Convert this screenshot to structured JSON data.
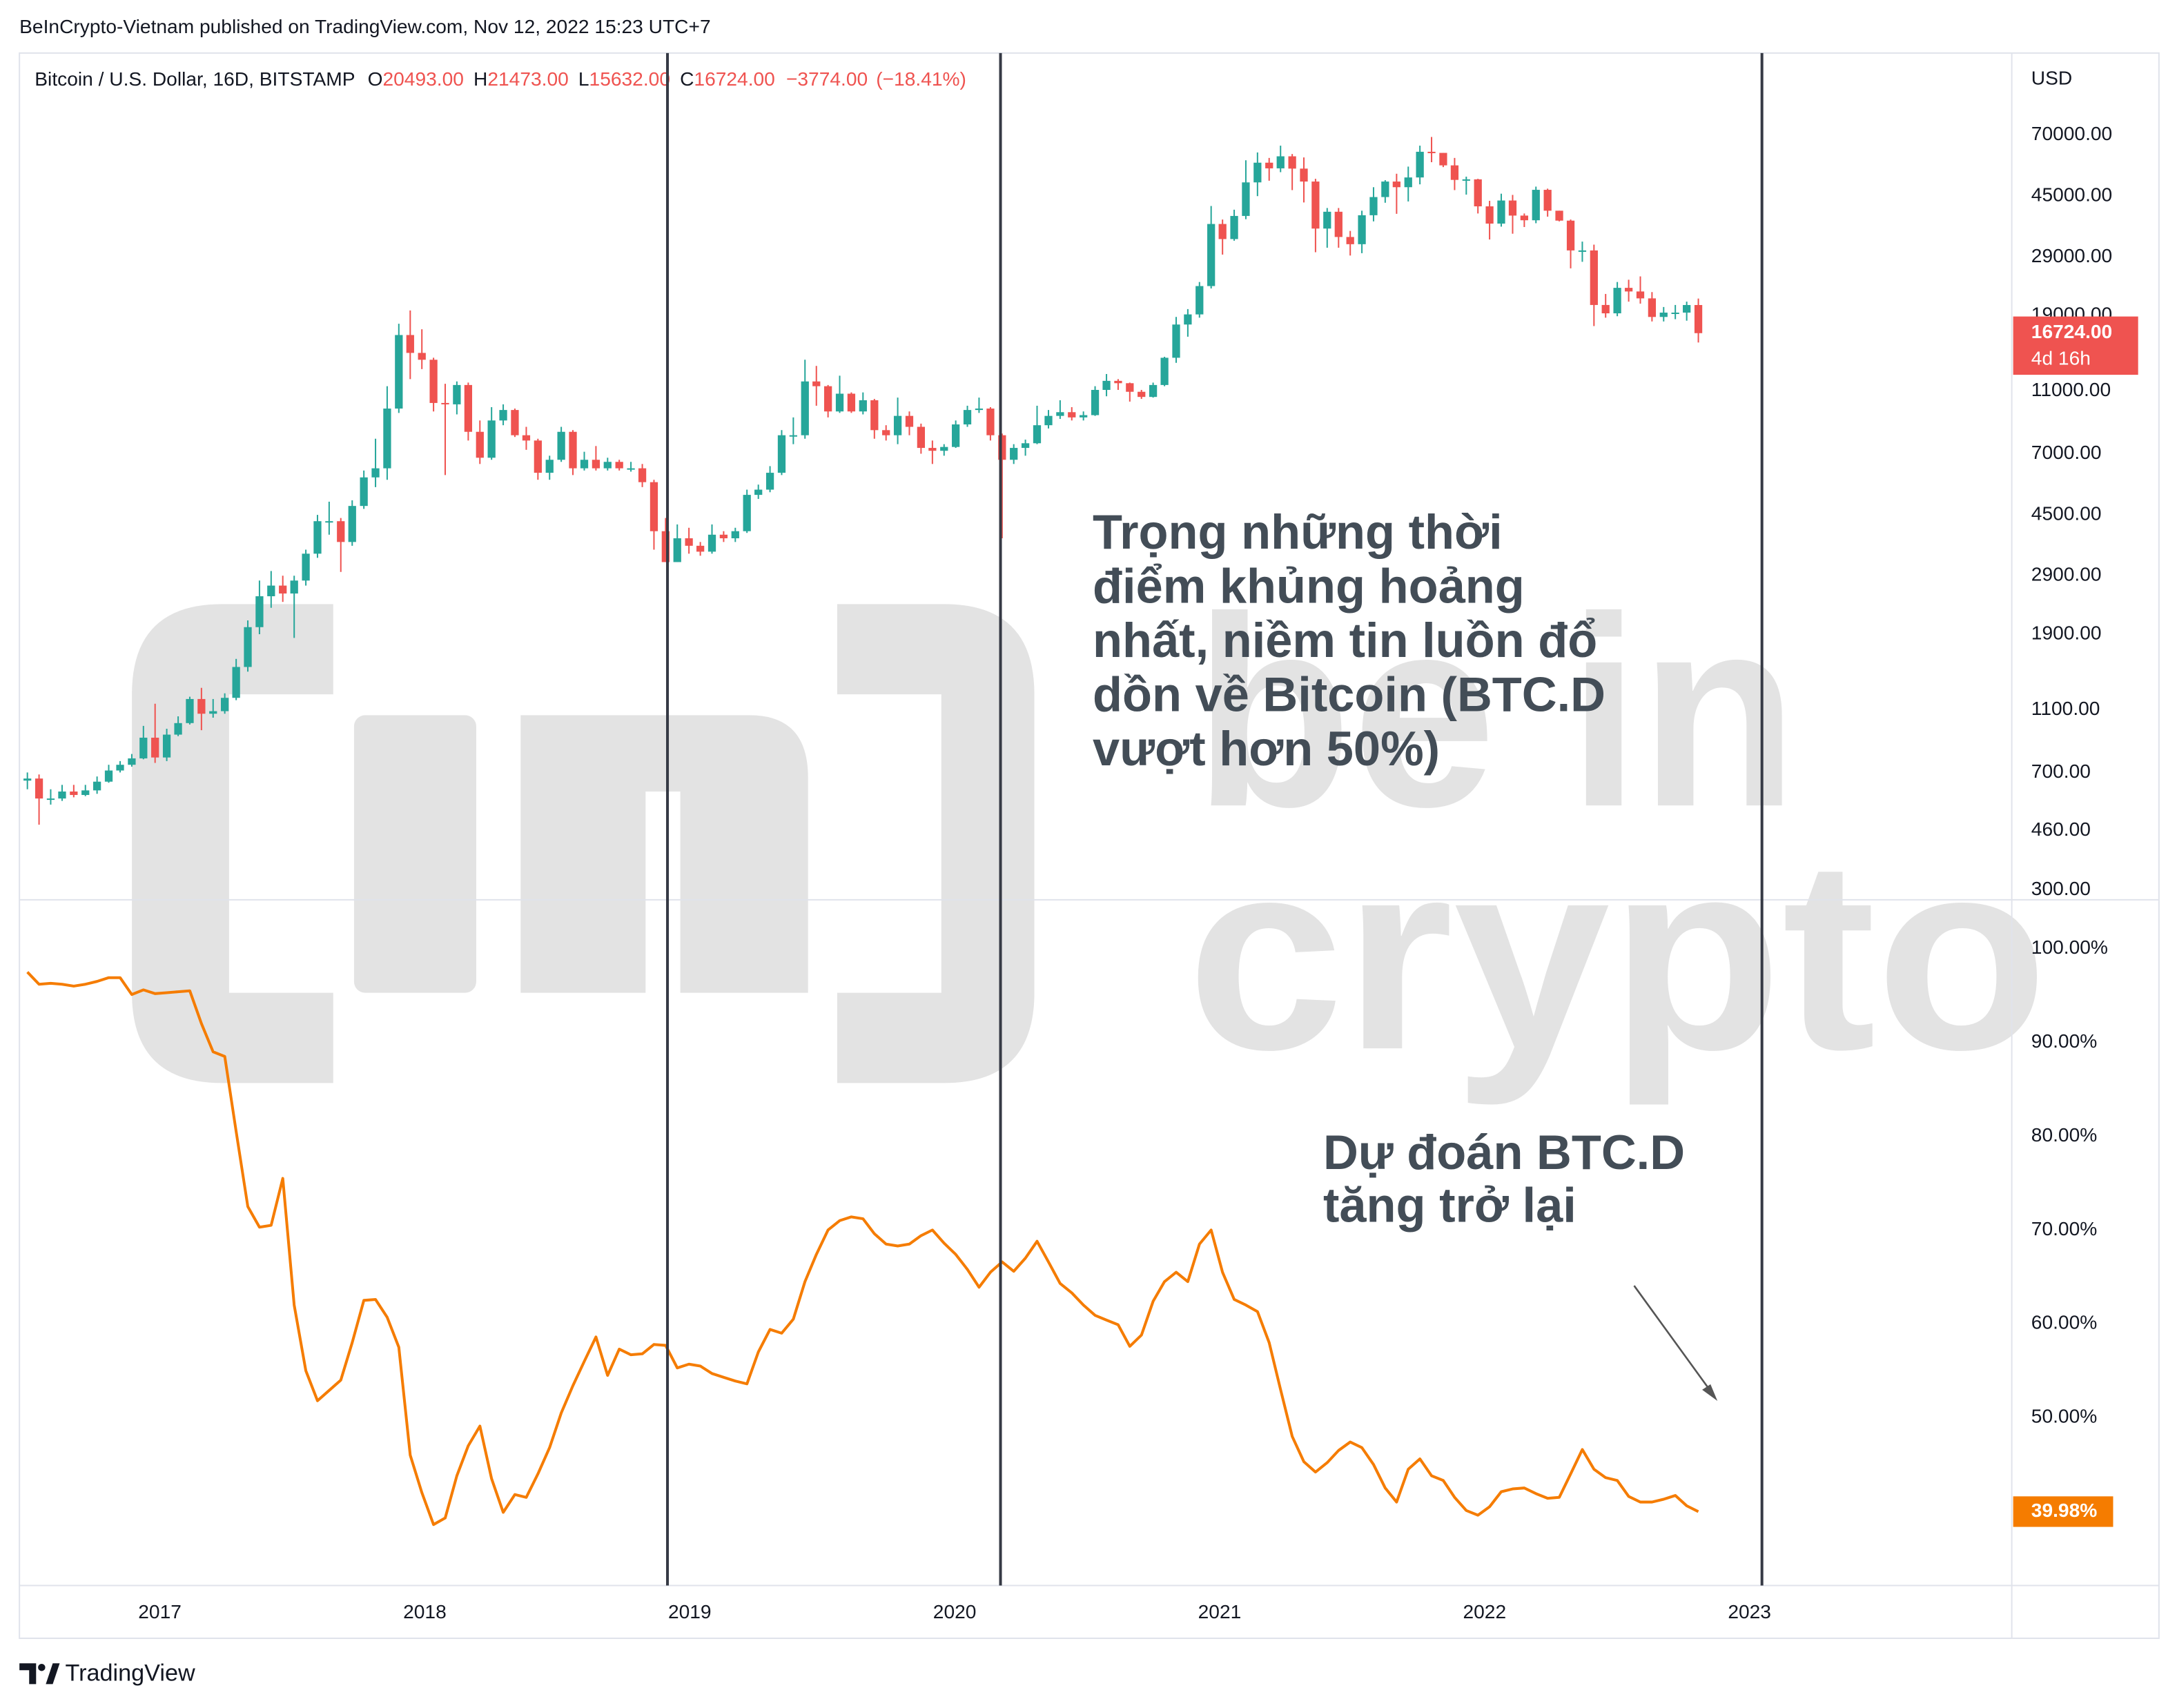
{
  "attribution": "BeInCrypto-Vietnam published on TradingView.com, Nov 12, 2022 15:23 UTC+7",
  "footer": "TradingView",
  "watermark": [
    "be in",
    "crypto"
  ],
  "chart_data": {
    "type": "candlestick",
    "header": {
      "symbol": "Bitcoin / U.S. Dollar, 16D, BITSTAMP",
      "fields": [
        {
          "key": "O",
          "value": "20493.00"
        },
        {
          "key": "H",
          "value": "21473.00"
        },
        {
          "key": "L",
          "value": "15632.00"
        },
        {
          "key": "C",
          "value": "16724.00"
        }
      ],
      "change": "−3774.00",
      "change_pct": "(−18.41%)"
    },
    "y_unit": "USD",
    "log": true,
    "grid": false,
    "up_color": "#26a69a",
    "down_color": "#ef5350",
    "xlim": [
      2016.47,
      2023.99
    ],
    "xticks": [
      2017,
      2018,
      2019,
      2020,
      2021,
      2022,
      2023
    ],
    "ylim": [
      279,
      126500
    ],
    "yticks": [
      {
        "value": 70000,
        "label": "70000.00"
      },
      {
        "value": 45000,
        "label": "45000.00"
      },
      {
        "value": 29000,
        "label": "29000.00"
      },
      {
        "value": 19000,
        "label": "19000.00"
      },
      {
        "value": 11000,
        "label": "11000.00"
      },
      {
        "value": 7000,
        "label": "7000.00"
      },
      {
        "value": 4500,
        "label": "4500.00"
      },
      {
        "value": 2900,
        "label": "2900.00"
      },
      {
        "value": 1900,
        "label": "1900.00"
      },
      {
        "value": 1100,
        "label": "1100.00"
      },
      {
        "value": 700,
        "label": "700.00"
      },
      {
        "value": 460,
        "label": "460.00"
      },
      {
        "value": 300,
        "label": "300.00"
      }
    ],
    "x": [
      2016.5,
      2016.544,
      2016.588,
      2016.631,
      2016.675,
      2016.719,
      2016.763,
      2016.807,
      2016.85,
      2016.894,
      2016.938,
      2016.982,
      2017.026,
      2017.069,
      2017.113,
      2017.157,
      2017.201,
      2017.245,
      2017.288,
      2017.332,
      2017.376,
      2017.42,
      2017.464,
      2017.507,
      2017.551,
      2017.595,
      2017.639,
      2017.683,
      2017.726,
      2017.77,
      2017.814,
      2017.858,
      2017.902,
      2017.945,
      2017.989,
      2018.033,
      2018.077,
      2018.121,
      2018.164,
      2018.208,
      2018.252,
      2018.296,
      2018.34,
      2018.383,
      2018.427,
      2018.471,
      2018.515,
      2018.559,
      2018.602,
      2018.646,
      2018.69,
      2018.734,
      2018.778,
      2018.821,
      2018.865,
      2018.909,
      2018.953,
      2018.997,
      2019.04,
      2019.084,
      2019.128,
      2019.172,
      2019.216,
      2019.259,
      2019.303,
      2019.347,
      2019.391,
      2019.435,
      2019.478,
      2019.522,
      2019.566,
      2019.61,
      2019.654,
      2019.697,
      2019.741,
      2019.785,
      2019.829,
      2019.873,
      2019.916,
      2019.96,
      2020.004,
      2020.048,
      2020.092,
      2020.135,
      2020.179,
      2020.223,
      2020.267,
      2020.311,
      2020.354,
      2020.398,
      2020.442,
      2020.486,
      2020.53,
      2020.573,
      2020.617,
      2020.661,
      2020.705,
      2020.749,
      2020.792,
      2020.836,
      2020.88,
      2020.924,
      2020.968,
      2021.011,
      2021.055,
      2021.099,
      2021.143,
      2021.187,
      2021.23,
      2021.274,
      2021.318,
      2021.362,
      2021.406,
      2021.449,
      2021.493,
      2021.537,
      2021.581,
      2021.625,
      2021.668,
      2021.712,
      2021.756,
      2021.8,
      2021.844,
      2021.887,
      2021.931,
      2021.975,
      2022.019,
      2022.063,
      2022.106,
      2022.15,
      2022.194,
      2022.238,
      2022.282,
      2022.325,
      2022.369,
      2022.413,
      2022.457,
      2022.501,
      2022.544,
      2022.588,
      2022.632,
      2022.676,
      2022.72,
      2022.763,
      2022.807
    ],
    "open": [
      660,
      670,
      580,
      580,
      610,
      595,
      615,
      655,
      710,
      740,
      775,
      900,
      780,
      920,
      1000,
      1190,
      1070,
      1090,
      1200,
      1500,
      2000,
      2500,
      2700,
      2550,
      2800,
      3400,
      4300,
      4300,
      3700,
      4800,
      5900,
      6300,
      9700,
      16500,
      14500,
      13800,
      10100,
      10000,
      11500,
      8200,
      6800,
      8900,
      9600,
      8000,
      7700,
      6100,
      6700,
      8200,
      6300,
      6700,
      6300,
      6600,
      6300,
      6300,
      5700,
      4000,
      3200,
      3800,
      3600,
      3450,
      3900,
      3800,
      4000,
      5200,
      5400,
      6100,
      8000,
      8000,
      11800,
      11400,
      9500,
      10800,
      9500,
      10300,
      8300,
      8000,
      9200,
      8500,
      7300,
      7150,
      7350,
      8650,
      9600,
      9700,
      8000,
      6700,
      7300,
      7550,
      8600,
      9200,
      9450,
      9100,
      9250,
      11100,
      11850,
      11650,
      10950,
      10550,
      11500,
      14000,
      17800,
      19150,
      23500,
      36800,
      33000,
      39000,
      49700,
      57300,
      55000,
      60000,
      54900,
      50000,
      35600,
      40200,
      33500,
      31800,
      39200,
      44700,
      50000,
      48000,
      51500,
      62000,
      61500,
      56200,
      50600,
      50800,
      41800,
      36900,
      43600,
      39100,
      37800,
      47100,
      40500,
      37700,
      30400,
      30400,
      20500,
      19300,
      23200,
      22600,
      21500,
      18800,
      19400,
      19400,
      20493
    ],
    "high": [
      700,
      690,
      620,
      640,
      640,
      640,
      680,
      740,
      760,
      800,
      980,
      1150,
      960,
      1050,
      1210,
      1290,
      1190,
      1240,
      1590,
      2100,
      2800,
      3000,
      2900,
      2900,
      3500,
      4500,
      4950,
      4400,
      5000,
      6200,
      7800,
      11400,
      17900,
      19700,
      17200,
      14000,
      11600,
      11800,
      11700,
      8900,
      9800,
      10000,
      9700,
      8500,
      7800,
      6900,
      8500,
      8300,
      7100,
      7400,
      6800,
      6700,
      6600,
      6500,
      5800,
      4400,
      4200,
      4100,
      3700,
      4200,
      4000,
      4100,
      5400,
      5600,
      6400,
      8300,
      9100,
      13800,
      13200,
      11500,
      12300,
      10900,
      10900,
      10400,
      8600,
      10500,
      9500,
      8700,
      7700,
      7500,
      8900,
      9900,
      10500,
      9800,
      8100,
      7500,
      7750,
      9900,
      9600,
      10300,
      9800,
      9500,
      11400,
      12450,
      12000,
      11700,
      11100,
      11700,
      14100,
      18800,
      19900,
      24200,
      41900,
      38000,
      40800,
      58300,
      61700,
      59300,
      64800,
      61000,
      59500,
      51000,
      41300,
      41300,
      35000,
      40500,
      48000,
      50500,
      52900,
      55700,
      64800,
      69000,
      61500,
      59300,
      51800,
      51000,
      43500,
      45800,
      45400,
      39700,
      48200,
      47500,
      40500,
      38000,
      32400,
      31700,
      22200,
      24200,
      24600,
      25200,
      22500,
      20200,
      20500,
      21000,
      21473
    ],
    "low": [
      620,
      480,
      555,
      570,
      585,
      590,
      600,
      650,
      700,
      730,
      770,
      750,
      760,
      910,
      990,
      950,
      1040,
      1070,
      1180,
      1450,
      1900,
      2300,
      2400,
      1850,
      2700,
      3300,
      3900,
      2980,
      3600,
      4700,
      5500,
      5800,
      9400,
      12000,
      12900,
      9500,
      6000,
      9300,
      7700,
      6500,
      6700,
      8600,
      7900,
      7200,
      5800,
      5800,
      6600,
      6000,
      6200,
      6200,
      6200,
      6200,
      6150,
      5500,
      3500,
      3200,
      3200,
      3400,
      3350,
      3400,
      3700,
      3700,
      3950,
      5050,
      5300,
      6000,
      7500,
      7800,
      9900,
      9100,
      9400,
      9400,
      9300,
      7800,
      7700,
      7500,
      8000,
      7000,
      6500,
      6900,
      7300,
      8500,
      9400,
      7700,
      3800,
      6500,
      6900,
      7500,
      8400,
      9000,
      8900,
      8900,
      9200,
      10600,
      11100,
      10200,
      10400,
      10500,
      11400,
      13500,
      16300,
      18700,
      23100,
      29500,
      32600,
      38100,
      45000,
      50300,
      53500,
      47000,
      43000,
      30000,
      31000,
      31000,
      29300,
      29800,
      37500,
      42900,
      39600,
      43300,
      49000,
      57500,
      55500,
      47000,
      45500,
      39700,
      32900,
      36100,
      34300,
      36000,
      37000,
      38800,
      37500,
      26700,
      28000,
      17600,
      18700,
      18900,
      21000,
      20700,
      18200,
      18200,
      18500,
      18300,
      15632
    ],
    "close": [
      670,
      580,
      580,
      610,
      595,
      615,
      655,
      710,
      740,
      775,
      900,
      780,
      920,
      1000,
      1190,
      1070,
      1090,
      1200,
      1500,
      2000,
      2500,
      2700,
      2550,
      2800,
      3400,
      4300,
      4300,
      3700,
      4800,
      5900,
      6300,
      9700,
      16500,
      14500,
      13800,
      10100,
      10000,
      11500,
      8200,
      6800,
      8900,
      9600,
      8000,
      7700,
      6100,
      6700,
      8200,
      6300,
      6700,
      6300,
      6600,
      6300,
      6300,
      5700,
      4000,
      3200,
      3800,
      3600,
      3450,
      3900,
      3800,
      4000,
      5200,
      5400,
      6100,
      8000,
      8000,
      11800,
      11400,
      9500,
      10800,
      9500,
      10300,
      8300,
      8000,
      9200,
      8500,
      7300,
      7150,
      7350,
      8650,
      9600,
      9700,
      8000,
      6700,
      7300,
      7550,
      8600,
      9200,
      9450,
      9100,
      9250,
      11100,
      11850,
      11650,
      10950,
      10550,
      11500,
      14000,
      17800,
      19150,
      23500,
      36800,
      33000,
      39000,
      49700,
      57300,
      55000,
      60000,
      54900,
      50000,
      35600,
      40200,
      33500,
      31800,
      39200,
      44700,
      50000,
      48000,
      51500,
      62000,
      61500,
      56200,
      50600,
      50800,
      41800,
      36900,
      43600,
      39100,
      37800,
      47100,
      40500,
      37700,
      30400,
      30400,
      20500,
      19300,
      23200,
      22600,
      21500,
      18800,
      19400,
      19400,
      20493,
      16724
    ],
    "last_label": "16724.00",
    "countdown": "4d 16h",
    "vlines": [
      2018.916,
      2020.173,
      2023.047
    ],
    "vline_color": "#363a45",
    "annotations": [
      {
        "lines": [
          "Trọng những thời",
          "điểm khủng hoảng",
          "nhất, niềm tin luồn đổ",
          "dồn về Bitcoin (BTC.D",
          "vượt hơn 50%)"
        ]
      },
      {
        "lines": [
          "Dự đoán BTC.D",
          "tăng trở lại"
        ]
      }
    ],
    "indicator": {
      "type": "line",
      "color": "#f57c00",
      "ylim": [
        32.1,
        105.2
      ],
      "yticks": [
        {
          "value": 100,
          "label": "100.00%"
        },
        {
          "value": 90,
          "label": "90.00%"
        },
        {
          "value": 80,
          "label": "80.00%"
        },
        {
          "value": 70,
          "label": "70.00%"
        },
        {
          "value": 60,
          "label": "60.00%"
        },
        {
          "value": 50,
          "label": "50.00%"
        }
      ],
      "values": [
        97.5,
        96.2,
        96.3,
        96.2,
        96.0,
        96.2,
        96.5,
        96.9,
        96.9,
        95.1,
        95.6,
        95.2,
        95.3,
        95.4,
        95.5,
        92,
        89,
        88.5,
        80.5,
        72.5,
        70.3,
        70.5,
        75.5,
        62,
        55,
        51.8,
        52.9,
        54,
        58,
        62.5,
        62.6,
        60.7,
        57.5,
        46,
        42,
        38.6,
        39.3,
        43.8,
        47,
        49.1,
        43.5,
        39.9,
        41.8,
        41.5,
        44,
        46.8,
        50.5,
        53.4,
        56,
        58.6,
        54.5,
        57.3,
        56.7,
        56.8,
        57.8,
        57.7,
        55.3,
        55.7,
        55.5,
        54.7,
        54.3,
        53.9,
        53.6,
        57,
        59.4,
        59,
        60.5,
        64.5,
        67.4,
        70,
        71,
        71.4,
        71.2,
        69.6,
        68.5,
        68.3,
        68.5,
        69.4,
        70,
        68.6,
        67.4,
        65.8,
        63.9,
        65.5,
        66.6,
        65.6,
        67,
        68.8,
        66.6,
        64.3,
        63.3,
        62,
        60.9,
        60.4,
        59.9,
        57.6,
        58.8,
        62.4,
        64.5,
        65.5,
        64.5,
        68.5,
        70,
        65.5,
        62.6,
        62,
        61.3,
        58,
        53,
        48,
        45.3,
        44.2,
        45.2,
        46.5,
        47.4,
        46.8,
        45,
        42.5,
        41,
        44.5,
        45.6,
        43.8,
        43.3,
        41.5,
        40.1,
        39.6,
        40.5,
        42.1,
        42.4,
        42.5,
        41.9,
        41.4,
        41.5,
        44,
        46.6,
        44.5,
        43.6,
        43.3,
        41.6,
        41,
        41,
        41.3,
        41.7,
        40.6,
        39.98
      ],
      "last_label": "39.98%"
    }
  }
}
